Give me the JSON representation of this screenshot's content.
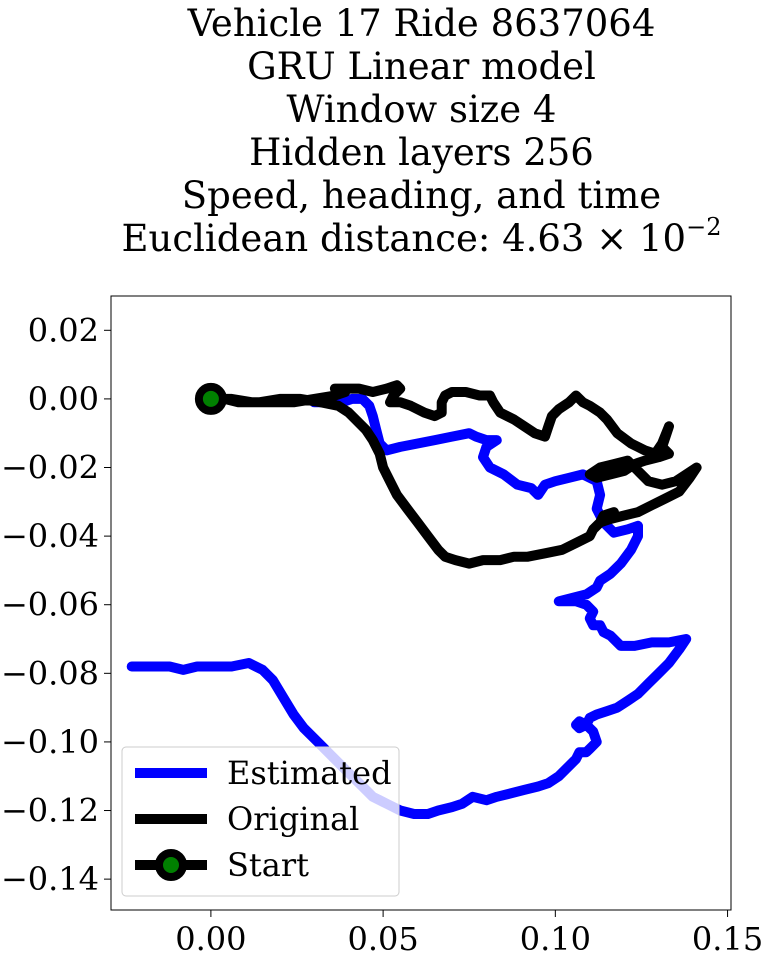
{
  "chart_data": {
    "type": "line",
    "title_lines": [
      "Vehicle 17 Ride 8637064",
      "GRU Linear model",
      "Window size 4",
      "Hidden layers 256",
      "Speed, heading, and time"
    ],
    "title_last_line": {
      "prefix": "Euclidean distance: 4.63 × 10",
      "exponent": "−2"
    },
    "xlabel": "",
    "ylabel": "",
    "xlim": [
      -0.029,
      0.151
    ],
    "ylim": [
      -0.149,
      0.03
    ],
    "x_ticks": [
      0.0,
      0.05,
      0.1,
      0.15
    ],
    "x_tick_labels": [
      "0.00",
      "0.05",
      "0.10",
      "0.15"
    ],
    "y_ticks": [
      0.02,
      0.0,
      -0.02,
      -0.04,
      -0.06,
      -0.08,
      -0.1,
      -0.12,
      -0.14
    ],
    "y_tick_labels": [
      "0.02",
      "0.00",
      "−0.02",
      "−0.04",
      "−0.06",
      "−0.08",
      "−0.10",
      "−0.12",
      "−0.14"
    ],
    "grid": false,
    "legend_position": "lower-left",
    "legend": [
      "Estimated",
      "Original",
      "Start"
    ],
    "colors": {
      "estimated": "#0000ff",
      "original": "#000000",
      "start_fill": "#008000"
    },
    "series": [
      {
        "name": "Estimated",
        "color": "#0000ff",
        "points": [
          [
            0.03,
            -0.001
          ],
          [
            0.034,
            -0.001
          ],
          [
            0.038,
            -0.001
          ],
          [
            0.041,
            0.0
          ],
          [
            0.044,
            0.0
          ],
          [
            0.046,
            -0.002
          ],
          [
            0.047,
            -0.005
          ],
          [
            0.048,
            -0.009
          ],
          [
            0.049,
            -0.013
          ],
          [
            0.051,
            -0.015
          ],
          [
            0.055,
            -0.014
          ],
          [
            0.06,
            -0.013
          ],
          [
            0.065,
            -0.012
          ],
          [
            0.07,
            -0.011
          ],
          [
            0.075,
            -0.01
          ],
          [
            0.077,
            -0.011
          ],
          [
            0.08,
            -0.012
          ],
          [
            0.083,
            -0.012
          ],
          [
            0.08,
            -0.014
          ],
          [
            0.079,
            -0.017
          ],
          [
            0.081,
            -0.02
          ],
          [
            0.085,
            -0.022
          ],
          [
            0.089,
            -0.025
          ],
          [
            0.093,
            -0.026
          ],
          [
            0.095,
            -0.028
          ],
          [
            0.097,
            -0.025
          ],
          [
            0.1,
            -0.024
          ],
          [
            0.104,
            -0.023
          ],
          [
            0.108,
            -0.022
          ],
          [
            0.11,
            -0.023
          ],
          [
            0.112,
            -0.024
          ],
          [
            0.113,
            -0.028
          ],
          [
            0.112,
            -0.032
          ],
          [
            0.114,
            -0.036
          ],
          [
            0.117,
            -0.039
          ],
          [
            0.121,
            -0.038
          ],
          [
            0.124,
            -0.037
          ],
          [
            0.124,
            -0.04
          ],
          [
            0.122,
            -0.044
          ],
          [
            0.119,
            -0.048
          ],
          [
            0.116,
            -0.051
          ],
          [
            0.113,
            -0.053
          ],
          [
            0.112,
            -0.055
          ],
          [
            0.109,
            -0.057
          ],
          [
            0.105,
            -0.058
          ],
          [
            0.101,
            -0.059
          ],
          [
            0.106,
            -0.059
          ],
          [
            0.109,
            -0.06
          ],
          [
            0.111,
            -0.062
          ],
          [
            0.11,
            -0.064
          ],
          [
            0.111,
            -0.066
          ],
          [
            0.113,
            -0.066
          ],
          [
            0.114,
            -0.068
          ],
          [
            0.116,
            -0.069
          ],
          [
            0.119,
            -0.072
          ],
          [
            0.123,
            -0.072
          ],
          [
            0.128,
            -0.071
          ],
          [
            0.133,
            -0.071
          ],
          [
            0.138,
            -0.07
          ],
          [
            0.136,
            -0.073
          ],
          [
            0.133,
            -0.077
          ],
          [
            0.13,
            -0.08
          ],
          [
            0.127,
            -0.083
          ],
          [
            0.124,
            -0.086
          ],
          [
            0.121,
            -0.088
          ],
          [
            0.118,
            -0.09
          ],
          [
            0.115,
            -0.091
          ],
          [
            0.112,
            -0.092
          ],
          [
            0.11,
            -0.093
          ],
          [
            0.109,
            -0.095
          ],
          [
            0.107,
            -0.096
          ],
          [
            0.106,
            -0.095
          ],
          [
            0.107,
            -0.094
          ],
          [
            0.109,
            -0.095
          ],
          [
            0.111,
            -0.097
          ],
          [
            0.112,
            -0.1
          ],
          [
            0.11,
            -0.102
          ],
          [
            0.109,
            -0.103
          ],
          [
            0.107,
            -0.103
          ],
          [
            0.106,
            -0.105
          ],
          [
            0.104,
            -0.107
          ],
          [
            0.101,
            -0.11
          ],
          [
            0.098,
            -0.112
          ],
          [
            0.095,
            -0.113
          ],
          [
            0.091,
            -0.114
          ],
          [
            0.087,
            -0.115
          ],
          [
            0.083,
            -0.116
          ],
          [
            0.08,
            -0.117
          ],
          [
            0.076,
            -0.116
          ],
          [
            0.073,
            -0.118
          ],
          [
            0.07,
            -0.119
          ],
          [
            0.066,
            -0.12
          ],
          [
            0.063,
            -0.121
          ],
          [
            0.059,
            -0.121
          ],
          [
            0.055,
            -0.12
          ],
          [
            0.051,
            -0.118
          ],
          [
            0.047,
            -0.116
          ],
          [
            0.043,
            -0.112
          ],
          [
            0.039,
            -0.108
          ],
          [
            0.035,
            -0.104
          ],
          [
            0.031,
            -0.1
          ],
          [
            0.027,
            -0.096
          ],
          [
            0.024,
            -0.092
          ],
          [
            0.021,
            -0.087
          ],
          [
            0.018,
            -0.082
          ],
          [
            0.015,
            -0.079
          ],
          [
            0.011,
            -0.077
          ],
          [
            0.006,
            -0.078
          ],
          [
            0.001,
            -0.078
          ],
          [
            -0.004,
            -0.078
          ],
          [
            -0.008,
            -0.079
          ],
          [
            -0.012,
            -0.078
          ],
          [
            -0.016,
            -0.078
          ],
          [
            -0.02,
            -0.078
          ],
          [
            -0.023,
            -0.078
          ]
        ]
      },
      {
        "name": "Original",
        "color": "#000000",
        "points": [
          [
            0.0,
            0.0
          ],
          [
            0.006,
            0.0
          ],
          [
            0.012,
            -0.001
          ],
          [
            0.018,
            -0.001
          ],
          [
            0.024,
            -0.001
          ],
          [
            0.03,
            0.0
          ],
          [
            0.036,
            0.001
          ],
          [
            0.039,
            0.002
          ],
          [
            0.036,
            0.003
          ],
          [
            0.043,
            0.003
          ],
          [
            0.047,
            0.002
          ],
          [
            0.051,
            0.003
          ],
          [
            0.054,
            0.004
          ],
          [
            0.055,
            0.003
          ],
          [
            0.053,
            0.001
          ],
          [
            0.052,
            -0.001
          ],
          [
            0.055,
            -0.001
          ],
          [
            0.058,
            -0.002
          ],
          [
            0.062,
            -0.004
          ],
          [
            0.065,
            -0.005
          ],
          [
            0.067,
            -0.004
          ],
          [
            0.067,
            -0.001
          ],
          [
            0.068,
            0.001
          ],
          [
            0.07,
            0.002
          ],
          [
            0.074,
            0.002
          ],
          [
            0.078,
            0.001
          ],
          [
            0.081,
            0.001
          ],
          [
            0.082,
            -0.001
          ],
          [
            0.084,
            -0.004
          ],
          [
            0.088,
            -0.006
          ],
          [
            0.091,
            -0.008
          ],
          [
            0.094,
            -0.01
          ],
          [
            0.097,
            -0.011
          ],
          [
            0.098,
            -0.008
          ],
          [
            0.099,
            -0.005
          ],
          [
            0.101,
            -0.003
          ],
          [
            0.104,
            -0.001
          ],
          [
            0.106,
            0.001
          ],
          [
            0.108,
            -0.001
          ],
          [
            0.11,
            -0.002
          ],
          [
            0.113,
            -0.004
          ],
          [
            0.115,
            -0.006
          ],
          [
            0.118,
            -0.01
          ],
          [
            0.122,
            -0.013
          ],
          [
            0.126,
            -0.015
          ],
          [
            0.129,
            -0.016
          ],
          [
            0.131,
            -0.013
          ],
          [
            0.133,
            -0.008
          ],
          [
            0.132,
            -0.011
          ],
          [
            0.131,
            -0.014
          ],
          [
            0.133,
            -0.016
          ],
          [
            0.13,
            -0.017
          ],
          [
            0.126,
            -0.018
          ],
          [
            0.123,
            -0.019
          ],
          [
            0.12,
            -0.021
          ],
          [
            0.116,
            -0.022
          ],
          [
            0.112,
            -0.023
          ],
          [
            0.11,
            -0.022
          ],
          [
            0.113,
            -0.02
          ],
          [
            0.117,
            -0.019
          ],
          [
            0.121,
            -0.018
          ],
          [
            0.124,
            -0.021
          ],
          [
            0.127,
            -0.024
          ],
          [
            0.131,
            -0.025
          ],
          [
            0.135,
            -0.024
          ],
          [
            0.138,
            -0.022
          ],
          [
            0.141,
            -0.02
          ],
          [
            0.139,
            -0.023
          ],
          [
            0.136,
            -0.027
          ],
          [
            0.132,
            -0.029
          ],
          [
            0.128,
            -0.031
          ],
          [
            0.124,
            -0.033
          ],
          [
            0.12,
            -0.034
          ],
          [
            0.116,
            -0.035
          ],
          [
            0.113,
            -0.036
          ],
          [
            0.114,
            -0.034
          ],
          [
            0.117,
            -0.033
          ],
          [
            0.114,
            -0.035
          ],
          [
            0.111,
            -0.038
          ],
          [
            0.11,
            -0.04
          ],
          [
            0.106,
            -0.042
          ],
          [
            0.102,
            -0.044
          ],
          [
            0.097,
            -0.045
          ],
          [
            0.092,
            -0.046
          ],
          [
            0.088,
            -0.046
          ],
          [
            0.084,
            -0.047
          ],
          [
            0.079,
            -0.047
          ],
          [
            0.075,
            -0.048
          ],
          [
            0.071,
            -0.047
          ],
          [
            0.068,
            -0.046
          ],
          [
            0.066,
            -0.044
          ],
          [
            0.063,
            -0.04
          ],
          [
            0.06,
            -0.036
          ],
          [
            0.057,
            -0.032
          ],
          [
            0.054,
            -0.028
          ],
          [
            0.052,
            -0.024
          ],
          [
            0.05,
            -0.02
          ],
          [
            0.049,
            -0.016
          ],
          [
            0.047,
            -0.012
          ],
          [
            0.045,
            -0.009
          ],
          [
            0.042,
            -0.006
          ],
          [
            0.04,
            -0.004
          ],
          [
            0.037,
            -0.002
          ],
          [
            0.032,
            -0.001
          ],
          [
            0.026,
            0.0
          ],
          [
            0.02,
            0.0
          ],
          [
            0.014,
            -0.001
          ],
          [
            0.008,
            -0.001
          ],
          [
            0.004,
            0.0
          ],
          [
            0.0,
            0.0
          ]
        ]
      }
    ],
    "start_point": {
      "name": "Start",
      "x": 0.0,
      "y": 0.0
    }
  }
}
